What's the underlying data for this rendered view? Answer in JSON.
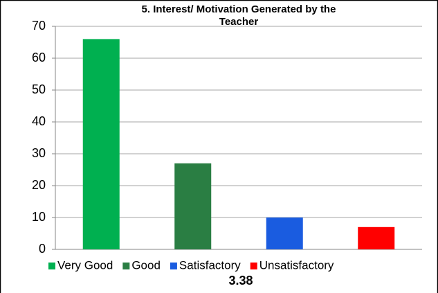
{
  "chart_data": {
    "type": "bar",
    "title": [
      "5. Interest/ Motivation Generated by the",
      "Teacher"
    ],
    "categories": [
      "Very Good",
      "Good",
      "Satisfactory",
      "Unsatisfactory"
    ],
    "values": [
      66,
      27,
      10,
      7
    ],
    "colors": [
      "#00b050",
      "#2a7e43",
      "#1a5ce0",
      "#ff0000"
    ],
    "ylim": [
      0,
      70
    ],
    "yticks": [
      0,
      10,
      20,
      30,
      40,
      50,
      60,
      70
    ],
    "grid": true,
    "legend": "bottom",
    "annotation": "3.38"
  }
}
